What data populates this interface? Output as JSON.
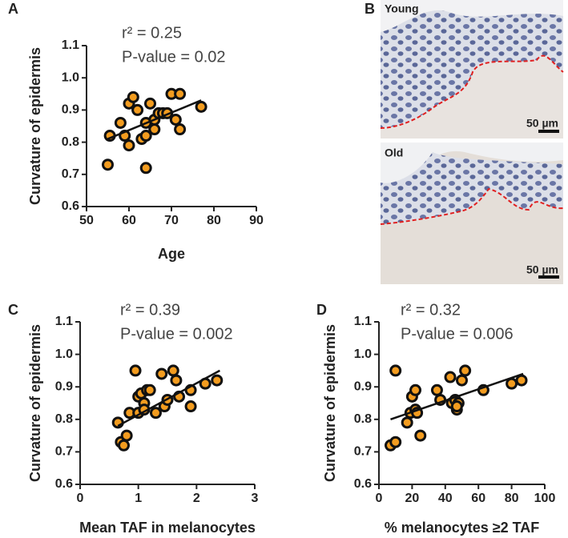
{
  "chart_data": [
    {
      "type": "scatter",
      "panel": "A",
      "ylabel": "Curvature of epidermis",
      "xlabel": "Age",
      "annotations": [
        "r² = 0.25",
        "P-value = 0.02"
      ],
      "x": [
        55,
        55.5,
        58,
        59,
        60,
        60,
        61,
        62,
        63,
        64,
        64,
        64,
        65,
        66,
        66,
        67,
        68,
        69,
        70,
        71,
        72,
        72,
        77
      ],
      "y": [
        0.73,
        0.82,
        0.86,
        0.82,
        0.79,
        0.92,
        0.94,
        0.9,
        0.81,
        0.82,
        0.86,
        0.72,
        0.92,
        0.84,
        0.87,
        0.89,
        0.89,
        0.89,
        0.95,
        0.87,
        0.95,
        0.84,
        0.91
      ],
      "fit": {
        "x": [
          55,
          77
        ],
        "y": [
          0.81,
          0.93
        ]
      },
      "color": "#f39c1f",
      "xlim": [
        50,
        90
      ],
      "xticks": [
        50,
        60,
        70,
        80,
        90
      ],
      "ylim": [
        0.6,
        1.1
      ],
      "yticks": [
        0.6,
        0.7,
        0.8,
        0.9,
        {
          "value": 1.0,
          "label": "1.0"
        },
        1.1
      ]
    },
    {
      "type": "scatter",
      "panel": "C",
      "ylabel": "Curvature of epidermis",
      "xlabel": "Mean TAF in melanocytes",
      "annotations": [
        "r² = 0.39",
        "P-value = 0.002"
      ],
      "x": [
        0.65,
        0.7,
        0.75,
        0.8,
        0.85,
        0.95,
        1.0,
        1.0,
        1.05,
        1.1,
        1.1,
        1.15,
        1.2,
        1.3,
        1.4,
        1.45,
        1.5,
        1.6,
        1.65,
        1.7,
        1.9,
        1.9,
        2.15,
        2.35
      ],
      "y": [
        0.79,
        0.73,
        0.72,
        0.75,
        0.82,
        0.95,
        0.87,
        0.82,
        0.88,
        0.85,
        0.83,
        0.89,
        0.89,
        0.82,
        0.94,
        0.84,
        0.86,
        0.95,
        0.92,
        0.87,
        0.84,
        0.89,
        0.91,
        0.92
      ],
      "fit": {
        "x": [
          0.65,
          2.4
        ],
        "y": [
          0.78,
          0.95
        ]
      },
      "color": "#f39c1f",
      "xlim": [
        0,
        3
      ],
      "xticks": [
        0,
        1,
        2,
        3
      ],
      "ylim": [
        0.6,
        1.1
      ],
      "yticks": [
        0.6,
        0.7,
        0.8,
        0.9,
        {
          "value": 1.0,
          "label": "1.0"
        },
        1.1
      ]
    },
    {
      "type": "scatter",
      "panel": "D",
      "ylabel": "Curvature of epidermis",
      "xlabel": "% melanocytes ≥2 TAF",
      "annotations": [
        "r² = 0.32",
        "P-value = 0.006"
      ],
      "x": [
        7,
        10,
        10,
        17,
        19,
        20,
        22,
        22,
        23,
        25,
        35,
        37,
        43,
        44,
        46,
        47,
        48,
        47,
        50,
        52,
        63,
        80,
        86
      ],
      "y": [
        0.72,
        0.73,
        0.95,
        0.79,
        0.82,
        0.87,
        0.83,
        0.89,
        0.82,
        0.75,
        0.89,
        0.86,
        0.93,
        0.85,
        0.86,
        0.83,
        0.85,
        0.84,
        0.92,
        0.95,
        0.89,
        0.91,
        0.92
      ],
      "fit": {
        "x": [
          7,
          87
        ],
        "y": [
          0.8,
          0.94
        ]
      },
      "color": "#f39c1f",
      "xlim": [
        0,
        100
      ],
      "xticks": [
        0,
        20,
        40,
        60,
        80,
        100
      ],
      "ylim": [
        0.6,
        1.1
      ],
      "yticks": [
        0.6,
        0.7,
        0.8,
        0.9,
        {
          "value": 1.0,
          "label": "1.0"
        },
        1.1
      ]
    }
  ],
  "panel_b": {
    "label": "B",
    "images": [
      {
        "label": "Young",
        "scale": "50 µm"
      },
      {
        "label": "Old",
        "scale": "50 µm"
      }
    ]
  }
}
